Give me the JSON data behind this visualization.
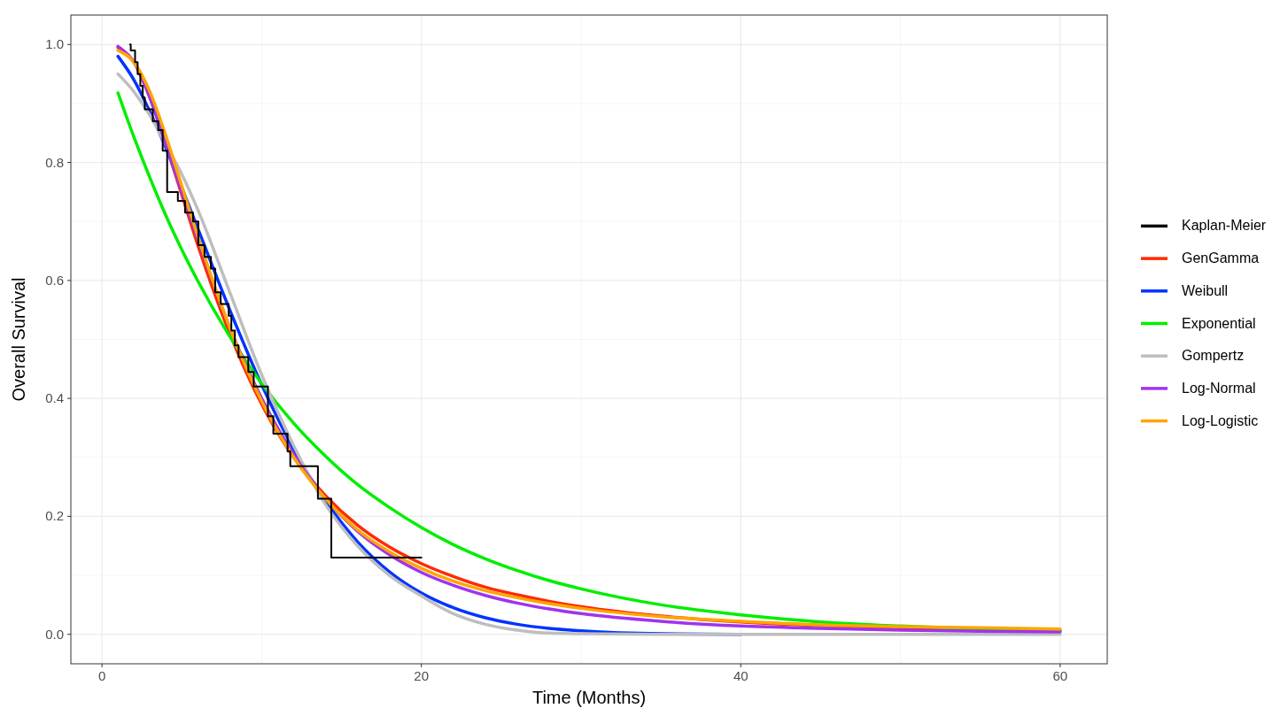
{
  "chart_data": {
    "type": "line",
    "xlabel": "Time (Months)",
    "ylabel": "Overall Survival",
    "xlim": [
      -1.95,
      62.95
    ],
    "ylim": [
      -0.05,
      1.05
    ],
    "xticks": [
      0,
      20,
      40,
      60
    ],
    "yticks": [
      {
        "value": 0,
        "label": "0.0"
      },
      {
        "value": 0.2,
        "label": "0.2"
      },
      {
        "value": 0.4,
        "label": "0.4"
      },
      {
        "value": 0.6,
        "label": "0.6"
      },
      {
        "value": 0.8,
        "label": "0.8"
      },
      {
        "value": 1,
        "label": "1.0"
      }
    ],
    "grid": true,
    "legend": "right",
    "line_style": "solid",
    "marker": "none",
    "series": [
      {
        "name": "Kaplan-Meier",
        "type": "step",
        "color": "#000000",
        "x": [
          1.75,
          1.8,
          2.07,
          2.23,
          2.4,
          2.55,
          2.68,
          3.18,
          3.52,
          3.8,
          4.08,
          4.75,
          5.2,
          5.7,
          6.03,
          6.42,
          6.82,
          7.09,
          7.43,
          7.93,
          8.1,
          8.32,
          8.55,
          9.16,
          9.5,
          10.39,
          10.73,
          11.62,
          11.79,
          13.52,
          14.36,
          20
        ],
        "values": [
          1.0,
          0.99,
          0.97,
          0.95,
          0.93,
          0.91,
          0.89,
          0.87,
          0.855,
          0.82,
          0.75,
          0.735,
          0.715,
          0.7,
          0.66,
          0.64,
          0.62,
          0.58,
          0.56,
          0.54,
          0.515,
          0.49,
          0.47,
          0.445,
          0.42,
          0.37,
          0.34,
          0.31,
          0.285,
          0.23,
          0.13,
          0.13
        ]
      },
      {
        "name": "GenGamma",
        "color": "#ff2a00",
        "x": [
          1,
          2,
          3,
          4,
          5,
          6,
          8,
          10,
          12,
          14,
          16,
          18,
          20,
          22,
          24,
          26,
          28,
          30,
          35,
          40,
          45,
          50,
          55,
          60
        ],
        "values": [
          0.995,
          0.97,
          0.91,
          0.83,
          0.745,
          0.66,
          0.51,
          0.39,
          0.3,
          0.235,
          0.185,
          0.148,
          0.12,
          0.098,
          0.08,
          0.067,
          0.056,
          0.047,
          0.031,
          0.021,
          0.015,
          0.011,
          0.008,
          0.006
        ]
      },
      {
        "name": "Weibull",
        "color": "#0033ff",
        "x": [
          1,
          2,
          3,
          4,
          5,
          6,
          8,
          10,
          12,
          14,
          16,
          18,
          20,
          22,
          24,
          26,
          28,
          30,
          35,
          40
        ],
        "values": [
          0.98,
          0.94,
          0.886,
          0.825,
          0.757,
          0.688,
          0.55,
          0.423,
          0.314,
          0.226,
          0.157,
          0.106,
          0.07,
          0.045,
          0.028,
          0.017,
          0.01,
          0.006,
          0.001,
          0
        ]
      },
      {
        "name": "Exponential",
        "color": "#00ee00",
        "x": [
          1,
          2,
          3,
          4,
          5,
          6,
          8,
          10,
          12,
          14,
          16,
          18,
          20,
          22,
          24,
          26,
          28,
          30,
          35,
          40,
          45,
          50,
          55,
          60
        ],
        "values": [
          0.918,
          0.843,
          0.774,
          0.71,
          0.652,
          0.599,
          0.505,
          0.425,
          0.358,
          0.302,
          0.254,
          0.215,
          0.181,
          0.152,
          0.128,
          0.108,
          0.091,
          0.077,
          0.05,
          0.033,
          0.021,
          0.014,
          0.009,
          0.006
        ]
      },
      {
        "name": "Gompertz",
        "color": "#bebebe",
        "x": [
          1,
          2,
          3,
          4,
          5,
          6,
          8,
          10,
          12,
          14,
          16,
          18,
          20,
          22,
          24,
          26,
          28,
          30,
          35,
          40,
          45,
          50,
          55,
          60
        ],
        "values": [
          0.95,
          0.92,
          0.88,
          0.83,
          0.78,
          0.72,
          0.58,
          0.44,
          0.32,
          0.22,
          0.15,
          0.1,
          0.065,
          0.035,
          0.017,
          0.007,
          0.002,
          0.001,
          0,
          0,
          0,
          0,
          0,
          0
        ]
      },
      {
        "name": "Log-Normal",
        "color": "#a033ee",
        "x": [
          1,
          2,
          3,
          4,
          5,
          6,
          8,
          10,
          12,
          14,
          16,
          18,
          20,
          22,
          24,
          26,
          28,
          30,
          35,
          40,
          45,
          50,
          55,
          60
        ],
        "values": [
          0.997,
          0.97,
          0.91,
          0.83,
          0.75,
          0.67,
          0.52,
          0.4,
          0.305,
          0.23,
          0.175,
          0.135,
          0.105,
          0.083,
          0.066,
          0.053,
          0.043,
          0.035,
          0.022,
          0.014,
          0.01,
          0.007,
          0.005,
          0.004
        ]
      },
      {
        "name": "Log-Logistic",
        "color": "#ffa500",
        "x": [
          1,
          2,
          3,
          4,
          5,
          6,
          8,
          10,
          12,
          14,
          16,
          18,
          20,
          22,
          24,
          26,
          28,
          30,
          35,
          40,
          45,
          50,
          55,
          60
        ],
        "values": [
          0.99,
          0.97,
          0.92,
          0.845,
          0.76,
          0.675,
          0.52,
          0.395,
          0.3,
          0.23,
          0.177,
          0.14,
          0.112,
          0.09,
          0.074,
          0.062,
          0.052,
          0.044,
          0.03,
          0.022,
          0.016,
          0.013,
          0.011,
          0.009
        ]
      }
    ]
  }
}
